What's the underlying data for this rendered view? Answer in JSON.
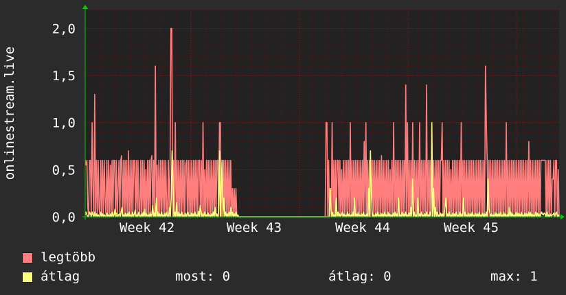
{
  "chart_data": {
    "type": "line",
    "ylabel": "onlinestream.live",
    "ylim": [
      0,
      2.2
    ],
    "y_ticks": [
      "0,0",
      "0,5",
      "1,0",
      "1,5",
      "2,0"
    ],
    "y_tick_values": [
      0,
      0.5,
      1.0,
      1.5,
      2.0
    ],
    "x_ticks": [
      "Week 42",
      "Week 43",
      "Week 44",
      "Week 45"
    ],
    "grid": true,
    "colors": {
      "max": "#ff7f7f",
      "avg": "#ffff7f",
      "grid": "#ff0000",
      "axis": "#00cc00",
      "background": "#222222"
    },
    "series": [
      {
        "name": "legtöbb",
        "color": "#ff7f7f",
        "values": [
          0.6,
          0.55,
          0.6,
          0.1,
          0.0,
          0.6,
          0.6,
          0.0,
          1.0,
          0.3,
          0.0,
          1.3,
          0.0,
          0.6,
          0.0,
          0.6,
          0.1,
          0.0,
          0.6,
          0.0,
          0.6,
          0.0,
          0.6,
          0.2,
          0.0,
          0.6,
          0.0,
          0.6,
          0.0,
          0.55,
          0.0,
          0.6,
          0.0,
          0.6,
          0.6,
          0.0,
          0.6,
          0.0,
          0.3,
          0.6,
          0.0,
          0.6,
          0.65,
          0.0,
          0.6,
          0.0,
          0.6,
          0.0,
          0.6,
          0.0,
          0.7,
          0.0,
          0.6,
          0.0,
          0.6,
          0.0,
          0.6,
          0.6,
          0.0,
          0.6,
          0.0,
          0.6,
          0.1,
          0.0,
          0.6,
          0.0,
          0.6,
          0.0,
          0.6,
          0.0,
          0.5,
          0.0,
          0.6,
          0.0,
          0.6,
          0.0,
          0.6,
          0.65,
          0.0,
          0.6,
          0.0,
          1.6,
          0.0,
          0.55,
          0.0,
          0.6,
          0.0,
          0.6,
          0.0,
          0.6,
          0.0,
          0.6,
          0.0,
          0.6,
          0.1,
          0.0,
          0.6,
          0.0,
          0.55,
          2.0,
          2.0,
          0.0,
          0.6,
          0.0,
          1.0,
          0.0,
          0.6,
          0.0,
          0.6,
          0.0,
          0.6,
          0.0,
          0.6,
          0.0,
          0.6,
          0.0,
          0.55,
          0.6,
          0.0,
          0.6,
          0.0,
          0.6,
          0.0,
          0.6,
          0.0,
          0.6,
          0.0,
          0.6,
          0.0,
          0.6,
          0.0,
          0.6,
          0.6,
          0.0,
          0.6,
          0.0,
          1.0,
          0.0,
          0.5,
          0.0,
          0.6,
          0.0,
          0.6,
          0.0,
          0.6,
          0.0,
          0.6,
          0.0,
          0.6,
          0.0,
          0.6,
          0.0,
          0.6,
          0.6,
          0.0,
          1.0,
          1.0,
          0.0,
          0.6,
          0.0,
          0.6,
          0.0,
          0.6,
          0.0,
          0.6,
          0.0,
          0.6,
          0.0,
          0.6,
          0.0,
          0.3,
          0.0,
          0.3,
          0.0,
          0.3,
          0.0,
          0.0,
          0.0,
          0.0,
          0.0,
          0.0,
          0.0,
          0.0,
          0.0,
          0.0,
          0.0,
          0.0,
          0.0,
          0.0,
          0.0,
          0.0,
          0.0,
          0.0,
          0.0,
          0.0,
          0.0,
          0.0,
          0.0,
          0.0,
          0.0,
          0.0,
          0.0,
          0.0,
          0.0,
          0.0,
          0.0,
          0.0,
          0.0,
          0.0,
          0.0,
          0.0,
          0.0,
          0.0,
          0.0,
          0.0,
          0.0,
          0.0,
          0.0,
          0.0,
          0.0,
          0.0,
          0.0,
          0.0,
          0.0,
          0.0,
          0.0,
          0.0,
          0.0,
          0.0,
          0.0,
          0.0,
          0.0,
          0.0,
          0.0,
          0.0,
          0.0,
          0.0,
          0.0,
          0.0,
          0.0,
          0.0,
          0.0,
          0.0,
          0.0,
          0.0,
          0.0,
          0.0,
          0.0,
          0.0,
          0.0,
          0.0,
          0.0,
          0.0,
          0.0,
          0.0,
          0.0,
          0.0,
          0.0,
          0.0,
          0.0,
          0.0,
          0.0,
          0.0,
          0.0,
          0.0,
          0.0,
          0.0,
          0.0,
          0.0,
          0.0,
          0.0,
          0.0,
          0.0,
          0.0,
          0.0,
          0.0,
          0.0,
          0.0,
          1.0,
          1.0,
          0.0,
          0.6,
          0.0,
          0.3,
          0.0,
          1.0,
          0.0,
          0.6,
          0.0,
          0.6,
          0.0,
          0.6,
          0.6,
          0.0,
          0.6,
          0.0,
          0.5,
          0.0,
          0.6,
          0.0,
          0.6,
          0.0,
          0.6,
          0.0,
          0.6,
          0.0,
          1.0,
          0.0,
          0.6,
          0.0,
          0.6,
          0.0,
          0.6,
          0.0,
          0.6,
          0.0,
          0.6,
          0.0,
          0.6,
          0.0,
          0.6,
          0.0,
          0.8,
          0.0,
          1.0,
          0.0,
          0.6,
          0.0,
          0.6,
          0.0,
          0.6,
          0.0,
          0.6,
          0.0,
          0.6,
          0.0,
          0.6,
          0.0,
          0.6,
          0.0,
          0.6,
          0.0,
          0.65,
          0.0,
          0.6,
          0.0,
          0.6,
          0.0,
          0.6,
          0.0,
          0.6,
          0.0,
          0.5,
          0.0,
          0.6,
          0.0,
          1.0,
          0.0,
          0.6,
          0.0,
          0.6,
          0.0,
          0.6,
          0.0,
          0.6,
          0.0,
          0.6,
          0.0,
          0.6,
          0.0,
          1.4,
          0.0,
          1.0,
          0.0,
          0.6,
          0.0,
          0.6,
          0.0,
          1.0,
          0.0,
          0.6,
          0.0,
          0.6,
          0.0,
          0.6,
          0.0,
          1.0,
          0.0,
          0.6,
          0.0,
          0.6,
          0.0,
          0.6,
          0.0,
          1.4,
          0.0,
          0.6,
          0.0,
          0.6,
          0.0,
          0.6,
          0.0,
          0.6,
          0.0,
          0.6,
          0.0,
          0.6,
          0.0,
          0.6,
          0.0,
          0.6,
          0.6,
          1.0,
          0.0,
          0.6,
          0.0,
          0.6,
          0.0,
          0.6,
          0.0,
          0.6,
          0.0,
          0.5,
          0.0,
          0.6,
          0.0,
          0.6,
          0.0,
          0.6,
          0.0,
          0.6,
          0.0,
          0.6,
          0.0,
          1.0,
          0.0,
          0.6,
          0.0,
          0.6,
          0.0,
          0.6,
          0.0,
          0.6,
          0.0,
          0.6,
          0.0,
          0.6,
          0.0,
          0.6,
          0.0,
          0.6,
          0.0,
          0.6,
          0.0,
          0.6,
          0.0,
          0.6,
          0.0,
          0.6,
          0.0,
          0.6,
          0.0,
          1.6,
          1.0,
          0.6,
          0.0,
          0.6,
          0.0,
          0.6,
          0.0,
          0.6,
          0.0,
          0.6,
          0.0,
          0.6,
          0.0,
          0.6,
          0.0,
          0.6,
          0.0,
          0.6,
          0.0,
          0.6,
          0.0,
          0.6,
          0.0,
          1.0,
          0.0,
          0.6,
          0.0,
          0.6,
          0.0,
          0.6,
          0.0,
          0.6,
          0.0,
          0.6,
          0.0,
          0.6,
          0.0,
          0.6,
          0.0,
          0.6,
          0.0,
          0.6,
          0.0,
          0.6,
          0.0,
          0.6,
          0.0,
          0.6,
          0.0,
          0.8,
          0.0,
          0.6,
          0.0,
          0.6,
          0.0,
          0.6,
          0.0,
          0.6,
          0.0,
          0.6,
          0.0,
          0.6,
          0.0,
          0.6,
          0.6,
          0.6,
          0.6,
          0.6,
          0.6,
          0.0,
          0.6,
          0.0,
          0.6,
          0.0,
          0.6,
          0.0,
          0.4,
          0.4,
          0.6,
          0.0,
          0.6,
          0.6,
          0.0,
          0.5,
          0.0
        ]
      },
      {
        "name": "átlag",
        "color": "#ffff7f",
        "values": [
          0.02,
          0.05,
          0.02,
          0.0,
          0.0,
          0.05,
          0.03,
          0.0,
          0.05,
          0.02,
          0.0,
          0.05,
          0.0,
          0.03,
          0.0,
          0.02,
          0.0,
          0.0,
          0.05,
          0.0,
          0.03,
          0.0,
          0.02,
          0.0,
          0.0,
          0.04,
          0.0,
          0.02,
          0.0,
          0.03,
          0.0,
          0.05,
          0.0,
          0.02,
          0.08,
          0.0,
          0.04,
          0.0,
          0.02,
          0.03,
          0.0,
          0.05,
          0.1,
          0.0,
          0.02,
          0.0,
          0.04,
          0.0,
          0.03,
          0.0,
          0.05,
          0.0,
          0.02,
          0.0,
          0.05,
          0.0,
          0.03,
          0.07,
          0.0,
          0.02,
          0.0,
          0.05,
          0.0,
          0.0,
          0.03,
          0.0,
          0.05,
          0.0,
          0.08,
          0.0,
          0.03,
          0.0,
          0.02,
          0.0,
          0.05,
          0.0,
          0.03,
          0.12,
          0.0,
          0.04,
          0.0,
          0.2,
          0.0,
          0.05,
          0.0,
          0.03,
          0.0,
          0.05,
          0.0,
          0.02,
          0.0,
          0.04,
          0.0,
          0.05,
          0.0,
          0.0,
          0.1,
          0.0,
          0.2,
          0.7,
          0.4,
          0.0,
          0.05,
          0.0,
          0.15,
          0.0,
          0.05,
          0.0,
          0.03,
          0.0,
          0.05,
          0.0,
          0.02,
          0.0,
          0.04,
          0.0,
          0.03,
          0.05,
          0.0,
          0.02,
          0.0,
          0.04,
          0.0,
          0.03,
          0.0,
          0.05,
          0.0,
          0.02,
          0.0,
          0.06,
          0.0,
          0.12,
          0.05,
          0.0,
          0.03,
          0.0,
          0.05,
          0.0,
          0.02,
          0.0,
          0.04,
          0.0,
          0.02,
          0.0,
          0.03,
          0.0,
          0.05,
          0.0,
          0.1,
          0.0,
          0.03,
          0.0,
          0.05,
          0.7,
          0.0,
          0.3,
          0.6,
          0.0,
          0.2,
          0.0,
          0.05,
          0.0,
          0.03,
          0.0,
          0.05,
          0.0,
          0.1,
          0.0,
          0.05,
          0.0,
          0.03,
          0.0,
          0.05,
          0.0,
          0.02,
          0.0,
          0.0,
          0.0,
          0.0,
          0.0,
          0.0,
          0.0,
          0.0,
          0.0,
          0.0,
          0.0,
          0.0,
          0.0,
          0.0,
          0.0,
          0.0,
          0.0,
          0.0,
          0.0,
          0.0,
          0.0,
          0.0,
          0.0,
          0.0,
          0.0,
          0.0,
          0.0,
          0.0,
          0.0,
          0.0,
          0.0,
          0.0,
          0.0,
          0.0,
          0.0,
          0.0,
          0.0,
          0.0,
          0.0,
          0.0,
          0.0,
          0.0,
          0.0,
          0.0,
          0.0,
          0.0,
          0.0,
          0.0,
          0.0,
          0.0,
          0.0,
          0.0,
          0.0,
          0.0,
          0.0,
          0.0,
          0.0,
          0.0,
          0.0,
          0.0,
          0.0,
          0.0,
          0.0,
          0.0,
          0.0,
          0.0,
          0.0,
          0.0,
          0.0,
          0.0,
          0.0,
          0.0,
          0.0,
          0.0,
          0.0,
          0.0,
          0.0,
          0.0,
          0.0,
          0.0,
          0.0,
          0.0,
          0.0,
          0.0,
          0.0,
          0.0,
          0.0,
          0.0,
          0.0,
          0.0,
          0.0,
          0.0,
          0.0,
          0.0,
          0.0,
          0.0,
          0.0,
          0.0,
          0.0,
          0.0,
          0.0,
          0.0,
          0.0,
          0.0,
          0.3,
          0.1,
          0.0,
          0.05,
          0.0,
          0.02,
          0.0,
          0.2,
          0.0,
          0.05,
          0.0,
          0.03,
          0.0,
          0.02,
          0.05,
          0.0,
          0.03,
          0.0,
          0.02,
          0.0,
          0.05,
          0.0,
          0.03,
          0.0,
          0.02,
          0.0,
          0.05,
          0.0,
          0.2,
          0.0,
          0.03,
          0.0,
          0.05,
          0.0,
          0.02,
          0.0,
          0.03,
          0.0,
          0.05,
          0.0,
          0.02,
          0.0,
          0.03,
          0.0,
          0.3,
          0.0,
          0.7,
          0.3,
          0.05,
          0.0,
          0.02,
          0.0,
          0.03,
          0.0,
          0.05,
          0.0,
          0.02,
          0.0,
          0.04,
          0.0,
          0.03,
          0.0,
          0.05,
          0.0,
          0.02,
          0.0,
          0.05,
          0.0,
          0.03,
          0.0,
          0.02,
          0.0,
          0.04,
          0.0,
          0.05,
          0.0,
          0.03,
          0.0,
          0.2,
          0.0,
          0.02,
          0.0,
          0.05,
          0.0,
          0.03,
          0.0,
          0.05,
          0.0,
          0.02,
          0.0,
          0.04,
          0.0,
          0.1,
          0.0,
          0.4,
          0.0,
          0.05,
          0.0,
          0.02,
          0.0,
          0.2,
          0.0,
          0.03,
          0.0,
          0.05,
          0.0,
          0.02,
          0.0,
          0.03,
          0.0,
          0.05,
          0.0,
          0.02,
          0.0,
          0.05,
          0.0,
          1.0,
          0.0,
          0.3,
          0.0,
          0.1,
          0.0,
          0.05,
          0.0,
          0.02,
          0.0,
          0.04,
          0.0,
          0.03,
          0.0,
          0.05,
          0.1,
          0.2,
          0.0,
          0.03,
          0.0,
          0.05,
          0.0,
          0.02,
          0.0,
          0.04,
          0.0,
          0.03,
          0.0,
          0.05,
          0.0,
          0.02,
          0.0,
          0.05,
          0.0,
          0.03,
          0.0,
          0.2,
          0.0,
          0.05,
          0.0,
          0.02,
          0.0,
          0.04,
          0.0,
          0.03,
          0.0,
          0.05,
          0.0,
          0.02,
          0.0,
          0.04,
          0.0,
          0.03,
          0.0,
          0.05,
          0.0,
          0.02,
          0.0,
          0.04,
          0.0,
          0.03,
          0.0,
          0.05,
          0.0,
          0.4,
          0.1,
          0.05,
          0.0,
          0.03,
          0.0,
          0.02,
          0.0,
          0.05,
          0.0,
          0.04,
          0.0,
          0.03,
          0.0,
          0.05,
          0.0,
          0.02,
          0.0,
          0.05,
          0.0,
          0.03,
          0.0,
          0.02,
          0.0,
          0.1,
          0.0,
          0.05,
          0.0,
          0.03,
          0.0,
          0.02,
          0.0,
          0.05,
          0.0,
          0.04,
          0.0,
          0.03,
          0.0,
          0.05,
          0.0,
          0.02,
          0.0,
          0.04,
          0.0,
          0.03,
          0.0,
          0.05,
          0.0,
          0.05,
          0.0,
          0.03,
          0.0,
          0.02,
          0.0,
          0.05,
          0.0,
          0.04,
          0.0,
          0.03,
          0.0,
          0.02,
          0.05,
          0.03,
          0.02,
          0.04,
          0.03,
          0.0,
          0.05,
          0.0,
          0.02,
          0.0,
          0.03,
          0.0,
          0.02,
          0.02,
          0.04,
          0.0,
          0.03,
          0.05,
          0.0,
          0.02,
          0.0
        ]
      }
    ]
  },
  "legend": {
    "max": {
      "label": "legtöbb",
      "color": "#ff7f7f"
    },
    "avg": {
      "label": "átlag",
      "color": "#ffff7f"
    },
    "stats": {
      "now_label": "most:",
      "now_value": "0",
      "avg_label": "átlag:",
      "avg_value": "0",
      "max_label": "max:",
      "max_value": "1"
    }
  }
}
